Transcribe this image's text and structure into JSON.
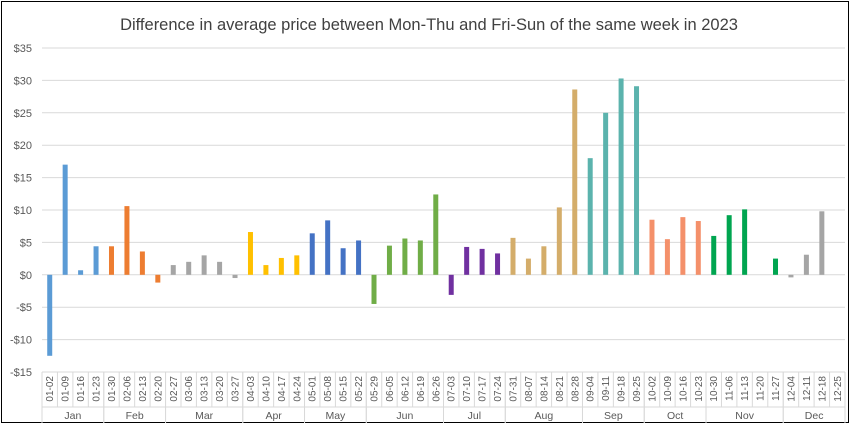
{
  "chart_data": {
    "type": "bar",
    "title": "Difference in average price between Mon-Thu and Fri-Sun of the same week in 2023",
    "xlabel": "",
    "ylabel": "",
    "ylim": [
      -15,
      35
    ],
    "yticks": [
      35,
      30,
      25,
      20,
      15,
      10,
      5,
      0,
      -5,
      -10,
      -15
    ],
    "ytick_labels": [
      "$35",
      "$30",
      "$25",
      "$20",
      "$15",
      "$10",
      "$5",
      "$0",
      "-$5",
      "-$10",
      "-$15"
    ],
    "grid": true,
    "months": [
      {
        "name": "Jan",
        "color": "#5b9bd5",
        "weeks": [
          "01-02",
          "01-09",
          "01-16",
          "01-23"
        ],
        "values": [
          -12.5,
          17.0,
          0.7,
          4.4
        ]
      },
      {
        "name": "Feb",
        "color": "#ed7d31",
        "weeks": [
          "01-30",
          "02-06",
          "02-13",
          "02-20"
        ],
        "values": [
          4.4,
          10.6,
          3.6,
          -1.2
        ]
      },
      {
        "name": "Mar",
        "color": "#a5a5a5",
        "weeks": [
          "02-27",
          "03-06",
          "03-13",
          "03-20",
          "03-27"
        ],
        "values": [
          1.5,
          2.0,
          3.0,
          2.0,
          -0.5
        ]
      },
      {
        "name": "Apr",
        "color": "#ffc000",
        "weeks": [
          "04-03",
          "04-10",
          "04-17",
          "04-24"
        ],
        "values": [
          6.6,
          1.5,
          2.6,
          3.0
        ]
      },
      {
        "name": "May",
        "color": "#4472c4",
        "weeks": [
          "05-01",
          "05-08",
          "05-15",
          "05-22"
        ],
        "values": [
          6.4,
          8.4,
          4.1,
          5.3
        ]
      },
      {
        "name": "Jun",
        "color": "#70ad47",
        "weeks": [
          "05-29",
          "06-05",
          "06-12",
          "06-19",
          "06-26"
        ],
        "values": [
          -4.5,
          4.5,
          5.6,
          5.3,
          12.4
        ]
      },
      {
        "name": "Jul",
        "color": "#7030a0",
        "weeks": [
          "07-03",
          "07-10",
          "07-17",
          "07-24"
        ],
        "values": [
          -3.1,
          4.3,
          4.0,
          3.3
        ]
      },
      {
        "name": "Aug",
        "color": "#d4ad6a",
        "weeks": [
          "07-31",
          "08-07",
          "08-14",
          "08-21",
          "08-28"
        ],
        "values": [
          5.7,
          2.5,
          4.4,
          10.4,
          28.6
        ]
      },
      {
        "name": "Sep",
        "color": "#5bb3ad",
        "weeks": [
          "09-04",
          "09-11",
          "09-18",
          "09-25"
        ],
        "values": [
          18.0,
          25.0,
          30.3,
          29.1
        ]
      },
      {
        "name": "Oct",
        "color": "#f4906a",
        "weeks": [
          "10-02",
          "10-09",
          "10-16",
          "10-23"
        ],
        "values": [
          8.5,
          5.5,
          8.9,
          8.3
        ]
      },
      {
        "name": "Nov",
        "color": "#00a550",
        "weeks": [
          "10-30",
          "11-06",
          "11-13",
          "11-20",
          "11-27"
        ],
        "values": [
          6.0,
          9.2,
          10.1,
          null,
          2.5
        ]
      },
      {
        "name": "Dec",
        "color": "#a5a5a5",
        "weeks": [
          "12-04",
          "12-11",
          "12-18",
          "12-25"
        ],
        "values": [
          -0.4,
          3.1,
          9.8,
          null
        ]
      }
    ]
  }
}
